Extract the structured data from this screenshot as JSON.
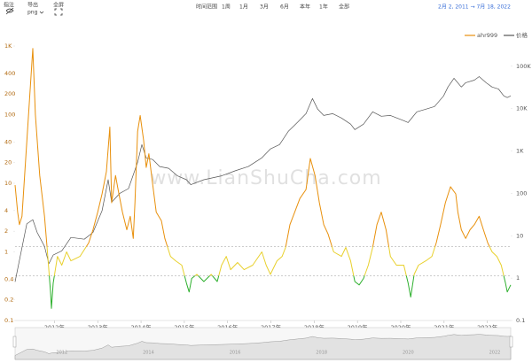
{
  "toolbar": {
    "annotate": "指注",
    "export": "导出",
    "export_format": "png",
    "fullscreen": "全屏",
    "range_label": "时间范围",
    "ranges": [
      "1周",
      "1月",
      "3月",
      "6月",
      "本年",
      "1年",
      "全部"
    ],
    "date_range": "2月 2, 2011 → 7月 18, 2022"
  },
  "chart_data": {
    "type": "line",
    "watermark": "www.LianShuCha.com",
    "legend": "top-right",
    "log_scale": true,
    "xlim": [
      2011.09,
      2022.54
    ],
    "xticks": [
      {
        "value": 2012,
        "label": "2012年"
      },
      {
        "value": 2013,
        "label": "2013年"
      },
      {
        "value": 2014,
        "label": "2014年"
      },
      {
        "value": 2015,
        "label": "2015年"
      },
      {
        "value": 2016,
        "label": "2016年"
      },
      {
        "value": 2017,
        "label": "2017年"
      },
      {
        "value": 2018,
        "label": "2018年"
      },
      {
        "value": 2019,
        "label": "2019年"
      },
      {
        "value": 2020,
        "label": "2020年"
      },
      {
        "value": 2021,
        "label": "2021年"
      },
      {
        "value": 2022,
        "label": "2022年"
      }
    ],
    "ylim": [
      0.1,
      1000
    ],
    "yticks": [
      0.1,
      0.2,
      0.4,
      1,
      2,
      4,
      10,
      20,
      40,
      100,
      200,
      400,
      {
        "value": 1000,
        "label": "1K"
      }
    ],
    "y2lim": [
      0.1,
      300000
    ],
    "y2ticks": [
      0.1,
      1,
      10,
      100,
      {
        "value": 1000,
        "label": "1K"
      },
      {
        "value": 10000,
        "label": "10K"
      },
      {
        "value": 100000,
        "label": "100K"
      }
    ],
    "reference_lines": [
      1.2,
      0.45
    ],
    "thresholds": [
      0.45,
      1.2
    ],
    "threshold_colors": [
      "#2eb02e",
      "#e8d02c",
      "#e8900c"
    ],
    "navigator_ticks": [
      2012,
      2014,
      2016,
      2018,
      2020,
      2022
    ],
    "series": [
      {
        "name": "ahr999",
        "color": "#e8900c",
        "x": [
          2011.09,
          2011.15,
          2011.19,
          2011.25,
          2011.5,
          2011.56,
          2011.66,
          2011.77,
          2011.83,
          2011.91,
          2011.93,
          2011.97,
          2012.07,
          2012.17,
          2012.28,
          2012.38,
          2012.59,
          2012.79,
          2012.89,
          2013.0,
          2013.1,
          2013.2,
          2013.28,
          2013.32,
          2013.41,
          2013.47,
          2013.57,
          2013.67,
          2013.75,
          2013.82,
          2013.86,
          2013.92,
          2013.98,
          2014.06,
          2014.12,
          2014.18,
          2014.27,
          2014.35,
          2014.47,
          2014.55,
          2014.68,
          2014.8,
          2014.94,
          2015.05,
          2015.11,
          2015.17,
          2015.29,
          2015.45,
          2015.62,
          2015.76,
          2015.86,
          2015.97,
          2016.07,
          2016.23,
          2016.38,
          2016.58,
          2016.79,
          2016.89,
          2016.99,
          2017.14,
          2017.26,
          2017.34,
          2017.44,
          2017.55,
          2017.67,
          2017.81,
          2017.91,
          2018.02,
          2018.12,
          2018.22,
          2018.32,
          2018.45,
          2018.63,
          2018.73,
          2018.84,
          2018.94,
          2019.04,
          2019.14,
          2019.25,
          2019.35,
          2019.45,
          2019.55,
          2019.66,
          2019.76,
          2019.9,
          2020.07,
          2020.17,
          2020.23,
          2020.31,
          2020.41,
          2020.58,
          2020.72,
          2020.82,
          2020.92,
          2021.03,
          2021.15,
          2021.27,
          2021.32,
          2021.4,
          2021.5,
          2021.6,
          2021.7,
          2021.81,
          2021.91,
          2022.01,
          2022.11,
          2022.22,
          2022.32,
          2022.42,
          2022.46,
          2022.54
        ],
        "values": [
          9.4,
          3.8,
          2.5,
          3.3,
          920,
          100,
          13,
          3.3,
          1.16,
          0.26,
          0.15,
          0.35,
          0.86,
          0.64,
          1.0,
          0.74,
          0.86,
          1.35,
          2.1,
          3.8,
          7.0,
          14.8,
          66,
          5.2,
          13,
          8.1,
          3.8,
          2.1,
          3.3,
          1.57,
          5.2,
          57,
          97,
          42,
          17,
          27,
          9.4,
          3.8,
          2.85,
          1.57,
          0.86,
          0.74,
          0.64,
          0.35,
          0.26,
          0.41,
          0.47,
          0.37,
          0.47,
          0.37,
          0.64,
          0.86,
          0.55,
          0.7,
          0.55,
          0.64,
          1.0,
          0.64,
          0.47,
          0.74,
          0.86,
          1.16,
          2.5,
          3.8,
          6.0,
          8.1,
          23,
          13,
          5.2,
          2.5,
          1.82,
          1.0,
          0.86,
          1.16,
          0.74,
          0.37,
          0.33,
          0.41,
          0.64,
          1.16,
          2.5,
          3.8,
          2.1,
          0.86,
          0.64,
          0.64,
          0.35,
          0.22,
          0.47,
          0.64,
          0.74,
          0.86,
          1.35,
          2.5,
          5.2,
          8.9,
          7.0,
          3.8,
          2.1,
          1.57,
          2.1,
          2.5,
          3.3,
          2.1,
          1.35,
          1.0,
          0.86,
          0.64,
          0.35,
          0.26,
          0.33
        ]
      },
      {
        "name": "价格",
        "color": "#555555",
        "axis": "y2",
        "x": [
          2011.09,
          2011.36,
          2011.5,
          2011.6,
          2011.77,
          2011.87,
          2011.97,
          2012.17,
          2012.38,
          2012.69,
          2012.89,
          2013.1,
          2013.24,
          2013.32,
          2013.51,
          2013.71,
          2013.92,
          2014.02,
          2014.12,
          2014.27,
          2014.43,
          2014.64,
          2014.84,
          2015.05,
          2015.15,
          2015.45,
          2015.86,
          2016.17,
          2016.48,
          2016.79,
          2016.99,
          2017.2,
          2017.4,
          2017.61,
          2017.81,
          2017.96,
          2018.08,
          2018.22,
          2018.43,
          2018.63,
          2018.84,
          2018.94,
          2019.14,
          2019.35,
          2019.55,
          2019.76,
          2020.07,
          2020.17,
          2020.37,
          2020.58,
          2020.78,
          2020.99,
          2021.09,
          2021.23,
          2021.4,
          2021.5,
          2021.7,
          2021.81,
          2021.97,
          2022.11,
          2022.26,
          2022.38,
          2022.46,
          2022.54
        ],
        "values": [
          0.82,
          19,
          24,
          12,
          5.6,
          2.2,
          3.5,
          4.4,
          9.1,
          8.3,
          12,
          39,
          210,
          62,
          100,
          130,
          540,
          1420,
          690,
          630,
          430,
          390,
          260,
          210,
          160,
          210,
          260,
          340,
          430,
          690,
          1120,
          1420,
          2900,
          4700,
          7600,
          17300,
          9700,
          6900,
          7600,
          6000,
          4300,
          3200,
          4300,
          8400,
          6600,
          6900,
          5200,
          4700,
          8400,
          9700,
          11200,
          20000,
          32300,
          52000,
          32300,
          41000,
          47000,
          57000,
          41000,
          32300,
          29000,
          20000,
          18200,
          20000
        ]
      }
    ]
  }
}
